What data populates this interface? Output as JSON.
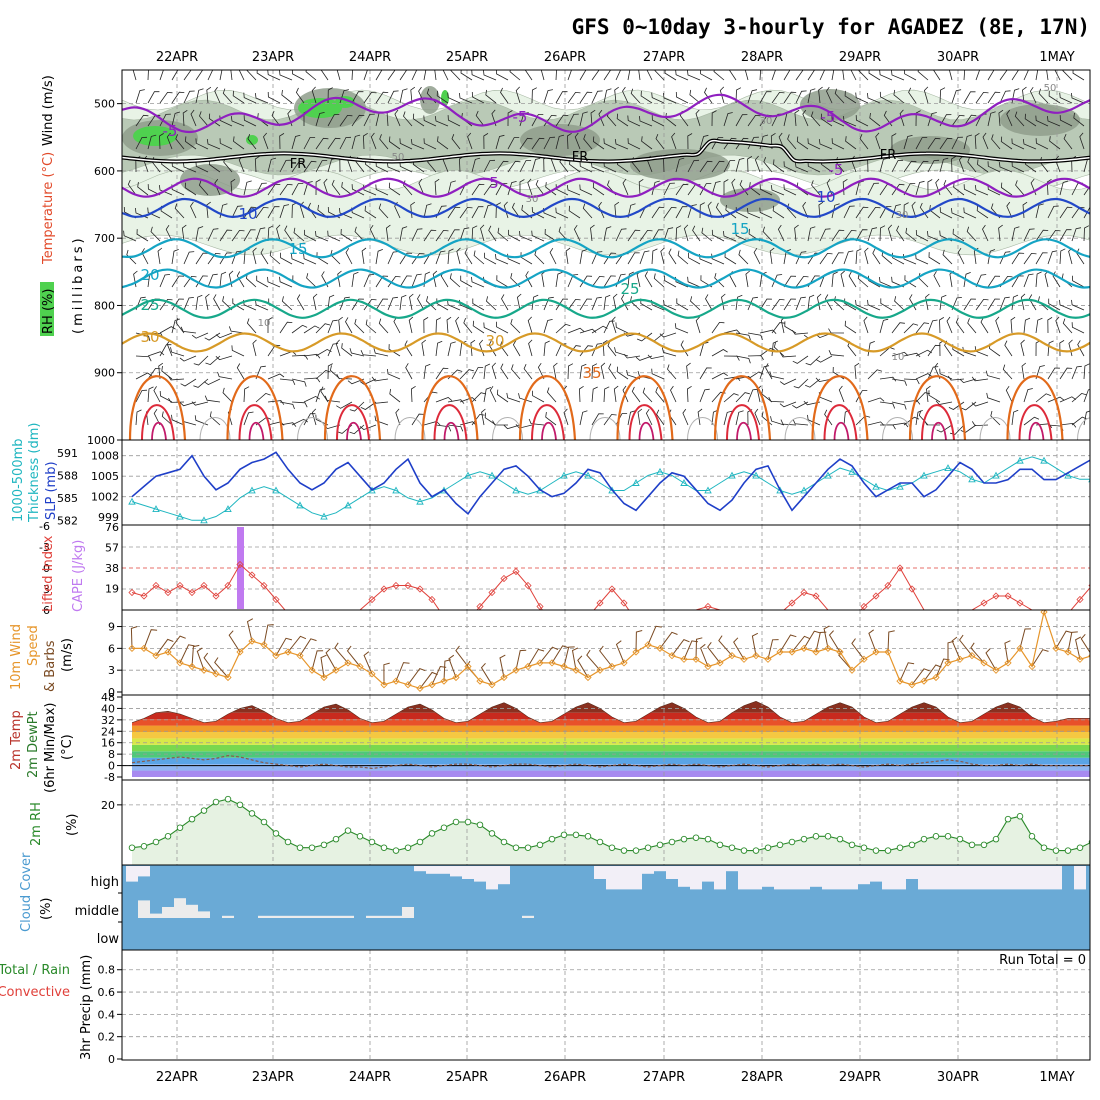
{
  "title": "GFS 0~10day 3-hourly for AGADEZ (8E, 17N)",
  "colors": {
    "temp_cold": "#8f1fc0",
    "temp_cool": "#2248c8",
    "temp_mid": "#15a4c4",
    "temp_warm": "#17a88a",
    "temp_30": "#d79a27",
    "temp_35": "#e26a1a",
    "temp_hot": "#dd2a3a",
    "freezing": "#000000",
    "rh_light": "#e8f3e6",
    "rh_mid": "#b9c9b6",
    "rh_dark": "#8f9e8c",
    "rh_green": "#4fd14f",
    "slp": "#1f3fc8",
    "thickness": "#1fb6c0",
    "lifted_index": "#e0403a",
    "cape": "#c07af0",
    "wind10m": "#e6952a",
    "barb10m": "#7a4a22",
    "rh2m": "#2a8a2a",
    "rh2m_fill": "#e6f2e2",
    "cloud": "#6aaad6",
    "cloud_clear": "#f2eff7"
  },
  "chart_data": [
    {
      "type": "heatmap",
      "panel": "upper-air cross section",
      "ylabel": "(millibars)",
      "yticks": [
        "500",
        "600",
        "700",
        "800",
        "900",
        "1000"
      ],
      "ylim": [
        450,
        1000
      ],
      "y_axis_titles": [
        "RH (%)",
        "Temperature (°C)",
        "Wind (m/s)"
      ],
      "temperature_labels": [
        "-5",
        "-5",
        "-5",
        "-5",
        "5",
        "10",
        "10",
        "15",
        "15",
        "20",
        "25",
        "25",
        "30",
        "30",
        "35"
      ],
      "freezing_labels": [
        "FR",
        "FR",
        "FR"
      ],
      "rh_labels": [
        "50",
        "50",
        "30",
        "30",
        "30",
        "10",
        "10"
      ],
      "temperature_levels_mb": {
        "-5": 515,
        "0": 580,
        "5": 625,
        "10": 655,
        "15": 715,
        "20": 760,
        "25": 805,
        "30": 855,
        "35": 930
      }
    },
    {
      "type": "line",
      "panel": "thickness and sea-level pressure",
      "y_axis_titles": [
        "1000-500mb",
        "Thickness (dm)",
        "SLP (mb)"
      ],
      "thickness_ticks": [
        "582",
        "585",
        "588",
        "591"
      ],
      "slp_ticks": [
        "999",
        "1002",
        "1005",
        "1008"
      ],
      "series": [
        {
          "name": "SLP (mb)",
          "values": [
            1002,
            1003.5,
            1005,
            1005.5,
            1006,
            1008,
            1005,
            1003,
            1004,
            1006,
            1007,
            1007.5,
            1008.5,
            1006,
            1004,
            1003,
            1004,
            1006,
            1007,
            1005,
            1003,
            1004,
            1006,
            1007.5,
            1004,
            1002,
            1003,
            1001,
            999.5,
            1002,
            1004,
            1006,
            1006.5,
            1005,
            1003,
            1002,
            1002.5,
            1004,
            1006,
            1005.5,
            1003,
            1001,
            1000,
            1002,
            1004,
            1005.5,
            1005,
            1003,
            1001,
            1000,
            1001.5,
            1004,
            1006,
            1006.5,
            1003,
            1000,
            1002,
            1004,
            1006,
            1007.5,
            1006.5,
            1004,
            1002,
            1003,
            1004,
            1004,
            1002,
            1003,
            1005,
            1007,
            1006,
            1004,
            1004,
            1004.5,
            1006,
            1006,
            1004.5,
            1004.5,
            1005.5,
            1006.5,
            1007.5
          ]
        },
        {
          "name": "1000-500mb Thickness (dm)",
          "values": [
            584.5,
            584,
            583.5,
            583,
            582.5,
            582,
            582,
            582.5,
            583.5,
            585,
            586,
            586.5,
            586,
            585,
            584,
            583,
            582.5,
            583,
            584,
            585,
            586,
            586.5,
            586,
            585,
            584.5,
            585,
            586,
            587,
            588,
            588.5,
            588,
            587,
            586,
            585.5,
            586,
            587,
            588,
            588.5,
            588,
            587,
            586,
            586,
            587,
            588,
            588.5,
            588,
            587,
            586,
            586,
            587,
            588,
            588.5,
            588,
            587,
            586,
            585.5,
            586,
            587,
            588,
            589,
            588.5,
            587.5,
            586.5,
            586,
            586.5,
            587,
            588,
            588.5,
            589,
            588.5,
            587.5,
            587,
            588,
            589,
            590,
            590.5,
            590,
            589,
            588,
            587.5,
            587.5
          ]
        }
      ]
    },
    {
      "type": "line",
      "panel": "lifted index and CAPE",
      "y_axis_titles": [
        "Lifted Index",
        "CAPE (J/kg)"
      ],
      "li_ticks": [
        "-6",
        "-3",
        "0",
        "3",
        "6"
      ],
      "cape_ticks": [
        "19",
        "38",
        "57",
        "76"
      ],
      "series": [
        {
          "name": "Lifted Index",
          "values": [
            3.5,
            4,
            2.5,
            3.5,
            2.5,
            3.5,
            2.5,
            4,
            2.5,
            -0.5,
            1,
            2.5,
            4.5,
            6.5,
            8,
            9,
            9,
            8.5,
            7.5,
            6,
            4.5,
            3,
            2.5,
            2.5,
            3,
            4.5,
            7,
            8.5,
            7.5,
            5.5,
            3.5,
            1.5,
            0.5,
            2.5,
            5.5,
            8,
            9,
            8.5,
            7,
            5,
            3,
            5,
            7.5,
            8,
            8,
            8,
            7,
            6,
            5.5,
            6,
            7,
            8,
            8,
            7.5,
            6.5,
            5,
            3.5,
            4,
            6,
            8.5,
            7.5,
            5.5,
            4,
            2.5,
            0,
            3,
            6,
            8,
            9,
            8,
            6,
            5,
            4,
            4,
            5,
            6,
            7,
            8,
            6.5,
            4.5,
            2.5,
            0.5,
            3,
            5,
            6,
            6,
            7
          ]
        },
        {
          "name": "CAPE (J/kg)",
          "values": [
            0,
            0,
            0,
            0,
            0,
            0,
            0,
            0,
            0,
            76,
            0,
            0,
            0,
            0,
            0,
            0,
            0,
            0,
            0,
            0,
            0,
            0,
            0,
            0,
            0,
            0,
            0,
            0,
            0,
            0,
            0,
            0,
            0,
            0,
            0,
            0,
            0,
            0,
            0,
            0,
            0,
            0,
            0,
            0,
            0,
            0,
            0,
            0,
            0,
            0,
            0,
            0,
            0,
            0,
            0,
            0,
            0,
            0,
            0,
            0,
            0,
            0,
            0,
            0,
            0,
            0,
            0,
            0,
            0,
            0,
            0,
            0,
            0,
            0,
            0,
            0,
            0,
            0,
            0,
            0,
            0,
            0
          ]
        }
      ]
    },
    {
      "type": "line",
      "panel": "10m wind",
      "y_axis_titles": [
        "10m Wind",
        "Speed",
        "& Barbs",
        "(m/s)"
      ],
      "yticks": [
        "0",
        "3",
        "6",
        "9"
      ],
      "ylim": [
        0,
        11
      ],
      "series": [
        {
          "name": "10m Wind Speed (m/s)",
          "values": [
            6,
            6,
            5,
            5.5,
            4,
            3.5,
            3,
            2.5,
            2,
            5.5,
            7,
            6.5,
            5,
            5.5,
            5,
            3,
            2,
            3,
            4,
            3.5,
            2.5,
            1,
            1.5,
            1,
            0.5,
            1,
            1.5,
            2,
            3.5,
            1.5,
            1,
            2,
            3,
            3.5,
            4,
            4,
            3.5,
            3,
            2,
            3,
            3.5,
            4,
            5.5,
            6.5,
            6,
            5,
            4.5,
            4.5,
            3.5,
            4,
            5,
            4.5,
            5,
            4.5,
            5.5,
            5.5,
            6,
            5.5,
            6,
            5.5,
            3,
            4.5,
            5.5,
            5.5,
            1.5,
            1,
            1.5,
            2,
            4,
            4.5,
            5,
            4,
            3,
            4,
            6,
            3.5,
            11,
            6,
            5.5,
            4.5,
            5,
            6,
            4,
            2,
            4.5,
            5.5,
            6
          ]
        }
      ]
    },
    {
      "type": "area",
      "panel": "2m temperature and dew point",
      "y_axis_titles": [
        "2m Temp",
        "2m DewPt",
        "(6hr Min/Max)",
        "(°C)"
      ],
      "yticks": [
        "-8",
        "0",
        "8",
        "16",
        "24",
        "32",
        "40",
        "48"
      ],
      "ylim": [
        -8,
        48
      ],
      "series": [
        {
          "name": "2m Temp (°C)",
          "values": [
            30,
            33,
            37,
            38,
            36,
            33,
            30,
            31,
            36,
            40,
            42,
            38,
            33,
            30,
            31,
            36,
            41,
            43,
            39,
            33,
            30,
            31,
            36,
            41,
            43,
            39,
            33,
            30,
            31,
            36,
            41,
            44,
            40,
            34,
            30,
            31,
            36,
            41,
            44,
            40,
            34,
            30,
            31,
            36,
            41,
            44,
            40,
            34,
            30,
            31,
            37,
            42,
            45,
            41,
            34,
            30,
            31,
            36,
            41,
            44,
            41,
            34,
            30,
            31,
            36,
            41,
            44,
            41,
            34,
            30,
            31,
            36,
            41,
            44,
            41,
            34,
            30,
            31,
            33,
            33,
            33
          ]
        },
        {
          "name": "2m DewPt (°C)",
          "values": [
            2,
            3,
            4,
            5,
            6,
            5,
            4,
            5,
            7,
            6,
            4,
            2,
            1,
            0,
            -1,
            0,
            1,
            0,
            -1,
            -1,
            -2,
            -1,
            0,
            1,
            0,
            -1,
            0,
            1,
            1,
            0,
            -1,
            0,
            1,
            1,
            0,
            -1,
            0,
            1,
            0,
            -1,
            0,
            1,
            0,
            -1,
            0,
            1,
            0,
            1,
            0,
            -1,
            0,
            1,
            0,
            -1,
            0,
            1,
            0,
            1,
            0,
            1,
            0,
            -1,
            0,
            1,
            0,
            1,
            2,
            3,
            4,
            3,
            1,
            0,
            0,
            1,
            0,
            1,
            0,
            0,
            0,
            0,
            0
          ]
        }
      ]
    },
    {
      "type": "line",
      "panel": "2m relative humidity",
      "y_axis_titles": [
        "2m RH",
        "(%)"
      ],
      "yticks": [
        "20"
      ],
      "ylim": [
        0,
        28
      ],
      "series": [
        {
          "name": "2m RH (%)",
          "values": [
            5,
            5.5,
            7,
            9,
            12,
            15,
            18,
            21,
            22,
            20,
            17,
            14,
            10,
            7,
            5,
            5,
            6,
            8,
            11,
            9,
            7,
            5,
            4,
            5,
            7,
            10,
            12,
            14,
            14,
            13,
            10,
            7,
            5,
            5,
            6,
            8,
            9.5,
            9.5,
            9,
            7,
            5,
            4,
            4,
            5,
            6,
            7,
            8,
            8.5,
            8,
            6,
            5,
            4,
            4,
            5,
            6,
            7,
            8,
            9,
            9,
            8,
            6,
            5,
            4,
            4,
            5,
            6,
            8,
            9,
            9,
            8,
            6,
            6,
            8,
            15,
            16,
            9,
            5,
            4,
            4,
            5,
            7
          ]
        }
      ]
    },
    {
      "type": "bar",
      "panel": "cloud cover",
      "y_axis_titles": [
        "Cloud Cover",
        "(%)"
      ],
      "yticks": [
        "high",
        "middle",
        "low"
      ],
      "series": [
        {
          "name": "high clear fraction",
          "values": [
            0.6,
            0.4,
            0,
            0,
            0,
            0,
            0,
            0,
            0,
            0,
            0,
            0,
            0,
            0,
            0,
            0,
            0,
            0,
            0,
            0,
            0,
            0,
            0,
            0,
            0.2,
            0.3,
            0.3,
            0.4,
            0.5,
            0.6,
            0.9,
            0.7,
            0,
            0,
            0,
            0,
            0,
            0,
            0,
            0.5,
            0.9,
            0.9,
            0.9,
            0.3,
            0.2,
            0.5,
            0.8,
            0.9,
            0.6,
            0.9,
            0.2,
            0.9,
            0.9,
            0.8,
            0.9,
            0.9,
            0.9,
            0.8,
            0.9,
            0.9,
            0.9,
            0.7,
            0.6,
            0.9,
            0.9,
            0.5,
            0.9,
            0.9,
            0.9,
            0.9,
            0.9,
            0.9,
            0.9,
            0.9,
            0.9,
            0.9,
            0.9,
            0.9,
            0,
            0.9,
            0
          ]
        },
        {
          "name": "middle clear fraction",
          "values": [
            0,
            0.8,
            0.2,
            0.5,
            0.9,
            0.6,
            0.3,
            0,
            0.1,
            0,
            0,
            0.1,
            0.1,
            0.1,
            0.1,
            0.1,
            0.1,
            0.1,
            0.1,
            0,
            0.1,
            0.1,
            0.1,
            0.5,
            0,
            0,
            0,
            0,
            0,
            0,
            0,
            0,
            0,
            0.1,
            0,
            0,
            0,
            0,
            0,
            0,
            0,
            0,
            0,
            0,
            0,
            0,
            0,
            0,
            0,
            0,
            0,
            0,
            0,
            0,
            0,
            0,
            0,
            0,
            0,
            0,
            0,
            0,
            0,
            0,
            0,
            0,
            0,
            0,
            0,
            0,
            0,
            0,
            0,
            0,
            0,
            0,
            0,
            0,
            0,
            0,
            0,
            0
          ]
        }
      ]
    },
    {
      "type": "bar",
      "panel": "3hr precipitation",
      "y_axis_titles": [
        "Total / Rain",
        "Convective",
        "3hr Precip (mm)"
      ],
      "yticks": [
        "0",
        "0.2",
        "0.4",
        "0.6",
        "0.8"
      ],
      "ylim": [
        0,
        0.95
      ],
      "run_total": "Run Total = 0",
      "series": [
        {
          "name": "3hr Precip (mm)",
          "values": [
            0,
            0,
            0,
            0,
            0,
            0,
            0,
            0,
            0,
            0,
            0,
            0,
            0,
            0,
            0,
            0,
            0,
            0,
            0,
            0,
            0,
            0,
            0,
            0,
            0,
            0,
            0,
            0,
            0,
            0,
            0,
            0,
            0,
            0,
            0,
            0,
            0,
            0,
            0,
            0,
            0,
            0,
            0,
            0,
            0,
            0,
            0,
            0,
            0,
            0,
            0,
            0,
            0,
            0,
            0,
            0,
            0,
            0,
            0,
            0,
            0,
            0,
            0,
            0,
            0,
            0,
            0,
            0,
            0,
            0,
            0,
            0,
            0,
            0,
            0,
            0,
            0,
            0,
            0,
            0,
            0
          ]
        }
      ]
    }
  ],
  "dates": [
    "22APR",
    "23APR",
    "24APR",
    "25APR",
    "26APR",
    "27APR",
    "28APR",
    "29APR",
    "30APR",
    "1MAY"
  ]
}
